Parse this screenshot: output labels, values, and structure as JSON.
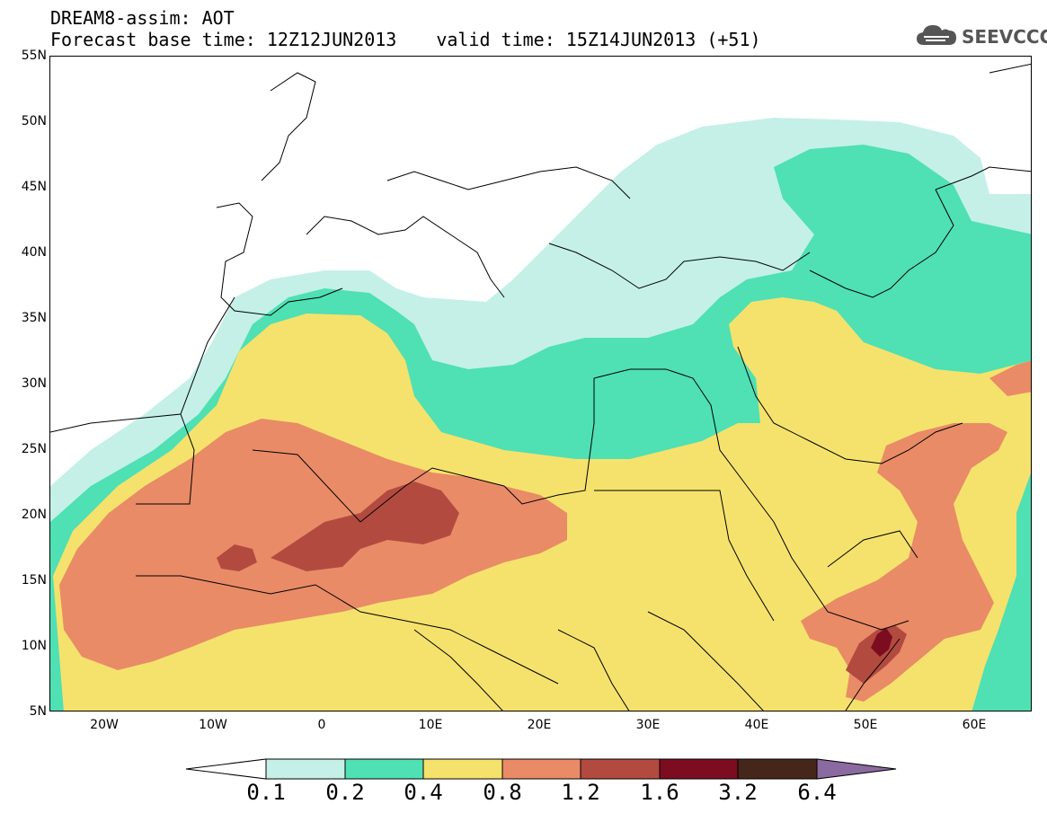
{
  "title": {
    "line1": "DREAM8-assim: AOT",
    "base": "Forecast base time: 12Z12JUN2013",
    "valid": "valid time: 15Z14JUN2013 (+51)"
  },
  "logo": {
    "text": "SEEVCCC"
  },
  "axes": {
    "lat_labels": [
      "55N",
      "50N",
      "45N",
      "40N",
      "35N",
      "30N",
      "25N",
      "20N",
      "15N",
      "10N",
      "5N"
    ],
    "lon_labels": [
      "20W",
      "10W",
      "0",
      "10E",
      "20E",
      "30E",
      "40E",
      "50E",
      "60E"
    ]
  },
  "colors": {
    "c01": "#c4f0e8",
    "c02": "#4fe0b4",
    "c04": "#f5e26c",
    "c08": "#e98b67",
    "c12": "#b34a40",
    "c16": "#7c0d20",
    "c32": "#45261a",
    "c64": "#8a6aa0"
  },
  "colorbar": {
    "labels": [
      "0.1",
      "0.2",
      "0.4",
      "0.8",
      "1.2",
      "1.6",
      "3.2",
      "6.4"
    ]
  }
}
